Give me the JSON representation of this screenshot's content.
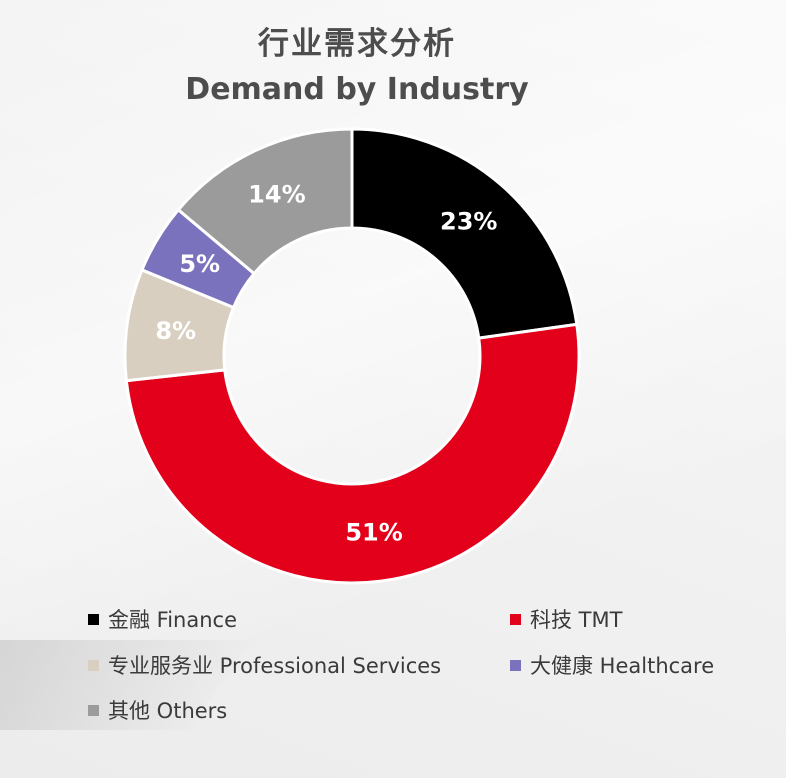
{
  "colors": {
    "finance": "#000000",
    "tmt": "#e3001b",
    "professional": "#d8cfc1",
    "healthcare": "#7b72bd",
    "others": "#9b9b9b"
  },
  "chart_data": {
    "type": "pie",
    "variant": "donut",
    "title": "行业需求分析",
    "subtitle": "Demand by Industry",
    "slices": [
      {
        "label": "金融 Finance",
        "value": 23,
        "display": "23%",
        "color": "#000000"
      },
      {
        "label": "科技 TMT",
        "value": 51,
        "display": "51%",
        "color": "#e3001b"
      },
      {
        "label": "专业服务业 Professional Services",
        "value": 8,
        "display": "8%",
        "color": "#d8cfc1"
      },
      {
        "label": "大健康 Healthcare",
        "value": 5,
        "display": "5%",
        "color": "#7b72bd"
      },
      {
        "label": "其他 Others",
        "value": 14,
        "display": "14%",
        "color": "#9b9b9b"
      }
    ],
    "legend_position": "bottom"
  }
}
